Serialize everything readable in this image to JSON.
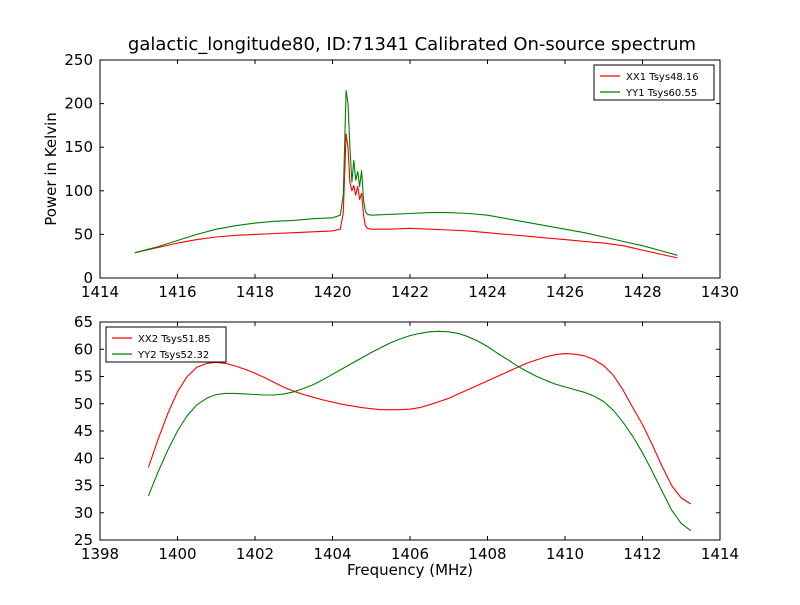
{
  "figure": {
    "title": "galactic_longitude80, ID:71341 Calibrated On-source spectrum",
    "xlabel": "Frequency (MHz)"
  },
  "chart_data": [
    {
      "type": "line",
      "title": "galactic_longitude80, ID:71341 Calibrated On-source spectrum",
      "xlabel": "",
      "ylabel": "Power in Kelvin",
      "xlim": [
        1414,
        1430
      ],
      "ylim": [
        0,
        250
      ],
      "xticks": [
        1414,
        1416,
        1418,
        1420,
        1422,
        1424,
        1426,
        1428,
        1430
      ],
      "yticks": [
        0,
        50,
        100,
        150,
        200,
        250
      ],
      "grid": false,
      "legend_position": "upper right",
      "series": [
        {
          "name": "XX1 Tsys48.16",
          "color": "#ff0000",
          "x": [
            1414.9,
            1415.5,
            1416.0,
            1416.5,
            1417.0,
            1417.5,
            1418.0,
            1418.5,
            1419.0,
            1419.5,
            1420.0,
            1420.2,
            1420.28,
            1420.35,
            1420.4,
            1420.45,
            1420.5,
            1420.55,
            1420.6,
            1420.65,
            1420.7,
            1420.75,
            1420.8,
            1420.85,
            1420.9,
            1421.0,
            1421.5,
            1422.0,
            1422.5,
            1423.0,
            1423.5,
            1424.0,
            1424.5,
            1425.0,
            1425.5,
            1426.0,
            1426.5,
            1427.0,
            1427.5,
            1428.0,
            1428.5,
            1428.9
          ],
          "y": [
            29,
            35,
            40,
            44,
            47,
            49,
            50,
            51,
            52,
            53,
            54,
            56,
            75,
            165,
            150,
            110,
            100,
            106,
            95,
            105,
            90,
            97,
            72,
            60,
            57,
            56,
            56,
            57,
            56,
            55,
            54,
            52,
            50,
            48,
            46,
            44,
            42,
            40,
            37,
            32,
            27,
            23
          ]
        },
        {
          "name": "YY1 Tsys60.55",
          "color": "#008000",
          "x": [
            1414.9,
            1415.5,
            1416.0,
            1416.5,
            1417.0,
            1417.5,
            1418.0,
            1418.5,
            1419.0,
            1419.5,
            1420.0,
            1420.2,
            1420.28,
            1420.35,
            1420.4,
            1420.45,
            1420.5,
            1420.55,
            1420.6,
            1420.65,
            1420.7,
            1420.75,
            1420.8,
            1420.85,
            1420.9,
            1421.0,
            1421.5,
            1422.0,
            1422.5,
            1423.0,
            1423.5,
            1424.0,
            1424.5,
            1425.0,
            1425.5,
            1426.0,
            1426.5,
            1427.0,
            1427.5,
            1428.0,
            1428.5,
            1428.9
          ],
          "y": [
            29,
            36,
            43,
            50,
            56,
            60,
            63,
            65,
            66,
            68,
            69,
            72,
            95,
            215,
            200,
            150,
            110,
            135,
            112,
            122,
            105,
            123,
            90,
            76,
            73,
            72,
            73,
            74,
            75,
            75,
            74,
            72,
            68,
            64,
            60,
            56,
            52,
            47,
            42,
            37,
            31,
            26
          ]
        }
      ]
    },
    {
      "type": "line",
      "title": "",
      "xlabel": "Frequency (MHz)",
      "ylabel": "",
      "xlim": [
        1398,
        1414
      ],
      "ylim": [
        25,
        65
      ],
      "xticks": [
        1398,
        1400,
        1402,
        1404,
        1406,
        1408,
        1410,
        1412,
        1414
      ],
      "yticks": [
        25,
        30,
        35,
        40,
        45,
        50,
        55,
        60,
        65
      ],
      "grid": false,
      "legend_position": "upper left",
      "series": [
        {
          "name": "XX2 Tsys51.85",
          "color": "#ff0000",
          "x": [
            1399.25,
            1399.5,
            1399.75,
            1400.0,
            1400.25,
            1400.5,
            1400.75,
            1401.0,
            1401.25,
            1401.5,
            1401.75,
            1402.0,
            1402.25,
            1402.5,
            1402.75,
            1403.0,
            1403.25,
            1403.5,
            1403.75,
            1404.0,
            1404.25,
            1404.5,
            1404.75,
            1405.0,
            1405.25,
            1405.5,
            1405.75,
            1406.0,
            1406.25,
            1406.5,
            1406.75,
            1407.0,
            1407.25,
            1407.5,
            1407.75,
            1408.0,
            1408.25,
            1408.5,
            1408.75,
            1409.0,
            1409.25,
            1409.5,
            1409.75,
            1410.0,
            1410.25,
            1410.5,
            1410.75,
            1411.0,
            1411.25,
            1411.5,
            1411.75,
            1412.0,
            1412.25,
            1412.5,
            1412.75,
            1413.0,
            1413.25
          ],
          "y": [
            38.3,
            43.5,
            48.2,
            52.2,
            55.0,
            56.7,
            57.4,
            57.6,
            57.4,
            56.9,
            56.3,
            55.6,
            54.8,
            53.9,
            53.0,
            52.3,
            51.7,
            51.2,
            50.7,
            50.3,
            49.9,
            49.6,
            49.3,
            49.1,
            48.9,
            48.9,
            48.9,
            49.0,
            49.3,
            49.8,
            50.4,
            51.0,
            51.8,
            52.6,
            53.4,
            54.2,
            55.0,
            55.8,
            56.6,
            57.4,
            58.0,
            58.6,
            59.0,
            59.2,
            59.1,
            58.8,
            58.1,
            57.0,
            55.2,
            52.5,
            49.3,
            46.2,
            42.5,
            38.6,
            35.0,
            32.7,
            31.6
          ]
        },
        {
          "name": "YY2 Tsys52.32",
          "color": "#008000",
          "x": [
            1399.25,
            1399.5,
            1399.75,
            1400.0,
            1400.25,
            1400.5,
            1400.75,
            1401.0,
            1401.25,
            1401.5,
            1401.75,
            1402.0,
            1402.25,
            1402.5,
            1402.75,
            1403.0,
            1403.25,
            1403.5,
            1403.75,
            1404.0,
            1404.25,
            1404.5,
            1404.75,
            1405.0,
            1405.25,
            1405.5,
            1405.75,
            1406.0,
            1406.25,
            1406.5,
            1406.75,
            1407.0,
            1407.25,
            1407.5,
            1407.75,
            1408.0,
            1408.25,
            1408.5,
            1408.75,
            1409.0,
            1409.25,
            1409.5,
            1409.75,
            1410.0,
            1410.25,
            1410.5,
            1410.75,
            1411.0,
            1411.25,
            1411.5,
            1411.75,
            1412.0,
            1412.25,
            1412.5,
            1412.75,
            1413.0,
            1413.25
          ],
          "y": [
            33.1,
            37.5,
            41.5,
            45.0,
            47.8,
            49.8,
            51.0,
            51.7,
            51.9,
            51.9,
            51.8,
            51.7,
            51.6,
            51.6,
            51.8,
            52.2,
            52.8,
            53.5,
            54.4,
            55.4,
            56.4,
            57.4,
            58.4,
            59.4,
            60.3,
            61.2,
            61.9,
            62.5,
            62.9,
            63.2,
            63.3,
            63.2,
            62.9,
            62.3,
            61.5,
            60.5,
            59.3,
            58.2,
            57.0,
            56.0,
            55.1,
            54.3,
            53.6,
            53.1,
            52.6,
            52.1,
            51.4,
            50.4,
            48.8,
            46.6,
            44.0,
            41.0,
            37.6,
            34.0,
            30.5,
            28.0,
            26.7
          ]
        }
      ]
    }
  ]
}
